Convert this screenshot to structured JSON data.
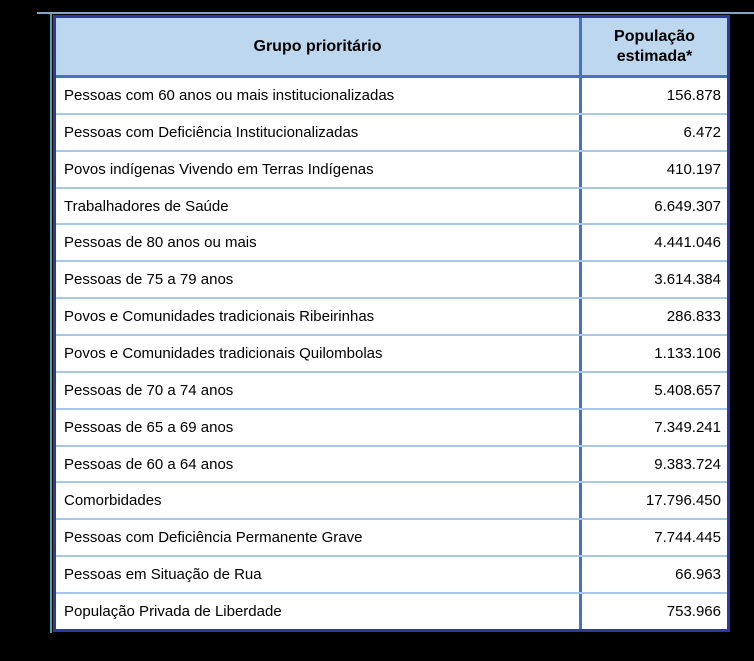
{
  "colors": {
    "page_background": "#000000",
    "table_border": "#2c3a9c",
    "header_background": "#bdd7ee",
    "column_divider": "#4472c4",
    "row_separator": "#a8c6e8",
    "text": "#000000",
    "artifact_top_line": "#9cc2e8",
    "artifact_left_line": "#55cfe4"
  },
  "table": {
    "headers": {
      "group": "Grupo prioritário",
      "population": "População estimada*"
    },
    "rows": [
      {
        "group": "Pessoas com 60 anos ou mais institucionalizadas",
        "population": "156.878"
      },
      {
        "group": "Pessoas com Deficiência Institucionalizadas",
        "population": "6.472"
      },
      {
        "group": "Povos indígenas Vivendo em Terras Indígenas",
        "population": "410.197"
      },
      {
        "group": "Trabalhadores de Saúde",
        "population": "6.649.307"
      },
      {
        "group": "Pessoas de 80 anos ou mais",
        "population": "4.441.046"
      },
      {
        "group": "Pessoas de 75 a 79 anos",
        "population": "3.614.384"
      },
      {
        "group": "Povos e Comunidades tradicionais Ribeirinhas",
        "population": "286.833"
      },
      {
        "group": "Povos e Comunidades tradicionais Quilombolas",
        "population": "1.133.106"
      },
      {
        "group": "Pessoas de 70 a 74 anos",
        "population": "5.408.657"
      },
      {
        "group": "Pessoas de 65 a 69 anos",
        "population": "7.349.241"
      },
      {
        "group": "Pessoas de 60 a 64 anos",
        "population": "9.383.724"
      },
      {
        "group": "Comorbidades",
        "population": "17.796.450"
      },
      {
        "group": "Pessoas com Deficiência Permanente Grave",
        "population": "7.744.445"
      },
      {
        "group": "Pessoas em Situação de Rua",
        "population": "66.963"
      },
      {
        "group": "População Privada de Liberdade",
        "population": "753.966"
      }
    ]
  },
  "chart_data": {
    "type": "table",
    "title": "",
    "columns": [
      "Grupo prioritário",
      "População estimada*"
    ],
    "rows": [
      [
        "Pessoas com 60 anos ou mais institucionalizadas",
        "156.878"
      ],
      [
        "Pessoas com Deficiência Institucionalizadas",
        "6.472"
      ],
      [
        "Povos indígenas Vivendo em Terras Indígenas",
        "410.197"
      ],
      [
        "Trabalhadores de Saúde",
        "6.649.307"
      ],
      [
        "Pessoas de 80 anos ou mais",
        "4.441.046"
      ],
      [
        "Pessoas de 75 a 79 anos",
        "3.614.384"
      ],
      [
        "Povos e Comunidades tradicionais Ribeirinhas",
        "286.833"
      ],
      [
        "Povos e Comunidades tradicionais Quilombolas",
        "1.133.106"
      ],
      [
        "Pessoas de 70 a 74 anos",
        "5.408.657"
      ],
      [
        "Pessoas de 65 a 69 anos",
        "7.349.241"
      ],
      [
        "Pessoas de 60 a 64 anos",
        "9.383.724"
      ],
      [
        "Comorbidades",
        "17.796.450"
      ],
      [
        "Pessoas com Deficiência Permanente Grave",
        "7.744.445"
      ],
      [
        "Pessoas em Situação de Rua",
        "66.963"
      ],
      [
        "População Privada de Liberdade",
        "753.966"
      ]
    ],
    "values_numeric": [
      156878,
      6472,
      410197,
      6649307,
      4441046,
      3614384,
      286833,
      1133106,
      5408657,
      7349241,
      9383724,
      17796450,
      7744445,
      66963,
      753966
    ]
  }
}
